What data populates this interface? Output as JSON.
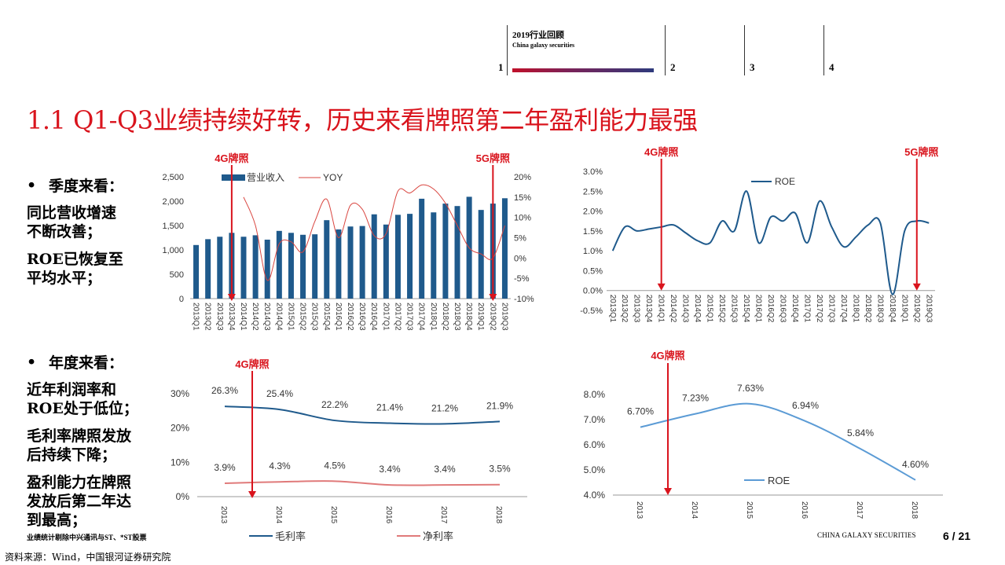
{
  "nav": {
    "title": "2019行业回顾",
    "subtitle": "China galaxy securities",
    "items": [
      "1",
      "2",
      "3",
      "4"
    ]
  },
  "title": "1.1 Q1-Q3业绩持续好转，历史来看牌照第二年盈利能力最强",
  "sidebar": {
    "quarterly_head": "季度来看：",
    "quarterly_points": [
      [
        "同比营收增速",
        "不断改善；"
      ],
      [
        "ROE已恢复至",
        "平均水平；"
      ]
    ],
    "annual_head": "年度来看：",
    "annual_points": [
      [
        "近年利润率和",
        "ROE处于低位；"
      ],
      [
        "毛利率牌照发放",
        "后持续下降；"
      ],
      [
        "盈利能力在牌照",
        "发放后第二年达",
        "到最高；"
      ]
    ]
  },
  "labels": {
    "g4": "4G牌照",
    "g5": "5G牌照"
  },
  "colors": {
    "accent": "#d9141d",
    "bar": "#1f5a8c",
    "line_red": "#d9453f",
    "line_blue": "#1f5a8c",
    "line_light": "#5b9bd5",
    "line_pink": "#e07a7a"
  },
  "footnote": "业绩统计剔除中兴通讯与ST、*ST股票",
  "source": "资料来源：Wind，中国银河证券研究院",
  "brand": "CHINA GALAXY SECURITIES",
  "page": "6 / 21",
  "chart_data": [
    {
      "type": "bar",
      "categories": [
        "2013Q1",
        "2013Q2",
        "2013Q3",
        "2013Q4",
        "2014Q1",
        "2014Q2",
        "2014Q3",
        "2014Q4",
        "2015Q1",
        "2015Q2",
        "2015Q3",
        "2015Q4",
        "2016Q1",
        "2016Q2",
        "2016Q3",
        "2016Q4",
        "2017Q1",
        "2017Q2",
        "2017Q3",
        "2017Q4",
        "2018Q1",
        "2018Q2",
        "2018Q3",
        "2018Q4",
        "2019Q1",
        "2019Q2",
        "2019Q3"
      ],
      "series": [
        {
          "name": "营业收入",
          "type": "bar",
          "values": [
            1100,
            1220,
            1270,
            1350,
            1270,
            1300,
            1210,
            1390,
            1350,
            1310,
            1320,
            1610,
            1420,
            1480,
            1490,
            1730,
            1520,
            1720,
            1740,
            2050,
            1770,
            1950,
            1900,
            2090,
            1820,
            1950,
            2060
          ]
        },
        {
          "name": "YOY",
          "type": "line",
          "axis": "right",
          "values": [
            null,
            null,
            null,
            null,
            15.0,
            8.0,
            -5.5,
            3.5,
            4.0,
            1.5,
            9.0,
            14.5,
            5.0,
            13.0,
            12.0,
            5.5,
            6.0,
            16.5,
            16.0,
            18.0,
            17.0,
            13.5,
            8.0,
            2.5,
            1.0,
            0.0,
            8.0
          ]
        }
      ],
      "yticks": [
        "2,500",
        "2,000",
        "1,500",
        "1,000",
        "500",
        "0"
      ],
      "y2ticks": [
        "20%",
        "15%",
        "10%",
        "5%",
        "0%",
        "-5%",
        "-10%"
      ],
      "ylim": [
        0,
        2500
      ],
      "y2lim": [
        -10,
        20
      ]
    },
    {
      "type": "line",
      "categories": [
        "2013Q1",
        "2013Q2",
        "2013Q3",
        "2013Q4",
        "2014Q1",
        "2014Q2",
        "2014Q3",
        "2014Q4",
        "2015Q1",
        "2015Q2",
        "2015Q3",
        "2015Q4",
        "2016Q1",
        "2016Q2",
        "2016Q3",
        "2016Q4",
        "2017Q1",
        "2017Q2",
        "2017Q3",
        "2017Q4",
        "2018Q1",
        "2018Q2",
        "2018Q3",
        "2018Q4",
        "2019Q1",
        "2019Q2",
        "2019Q3"
      ],
      "series": [
        {
          "name": "ROE",
          "values": [
            1.0,
            1.6,
            1.5,
            1.55,
            1.6,
            1.65,
            1.45,
            1.25,
            1.2,
            1.75,
            1.5,
            2.5,
            1.2,
            1.85,
            1.75,
            1.95,
            1.2,
            2.25,
            1.6,
            1.1,
            1.35,
            1.65,
            1.7,
            -0.1,
            1.5,
            1.75,
            1.7
          ]
        }
      ],
      "yticks": [
        "3.0%",
        "2.5%",
        "2.0%",
        "1.5%",
        "1.0%",
        "0.5%",
        "0.0%",
        "-0.5%"
      ],
      "ylim": [
        -0.5,
        3.0
      ]
    },
    {
      "type": "line",
      "categories": [
        "2013",
        "2014",
        "2015",
        "2016",
        "2017",
        "2018"
      ],
      "series": [
        {
          "name": "毛利率",
          "values": [
            26.3,
            25.4,
            22.2,
            21.4,
            21.2,
            21.9
          ],
          "labels": [
            "26.3%",
            "25.4%",
            "22.2%",
            "21.4%",
            "21.2%",
            "21.9%"
          ]
        },
        {
          "name": "净利率",
          "values": [
            3.9,
            4.3,
            4.5,
            3.4,
            3.4,
            3.5
          ],
          "labels": [
            "3.9%",
            "4.3%",
            "4.5%",
            "3.4%",
            "3.4%",
            "3.5%"
          ]
        }
      ],
      "yticks": [
        "30%",
        "20%",
        "10%",
        "0%"
      ],
      "ylim": [
        0,
        30
      ]
    },
    {
      "type": "line",
      "categories": [
        "2013",
        "2014",
        "2015",
        "2016",
        "2017",
        "2018"
      ],
      "series": [
        {
          "name": "ROE",
          "values": [
            6.7,
            7.23,
            7.63,
            6.94,
            5.84,
            4.6
          ],
          "labels": [
            "6.70%",
            "7.23%",
            "7.63%",
            "6.94%",
            "5.84%",
            "4.60%"
          ]
        }
      ],
      "yticks": [
        "8.0%",
        "7.0%",
        "6.0%",
        "5.0%",
        "4.0%"
      ],
      "ylim": [
        4.0,
        8.0
      ]
    }
  ]
}
